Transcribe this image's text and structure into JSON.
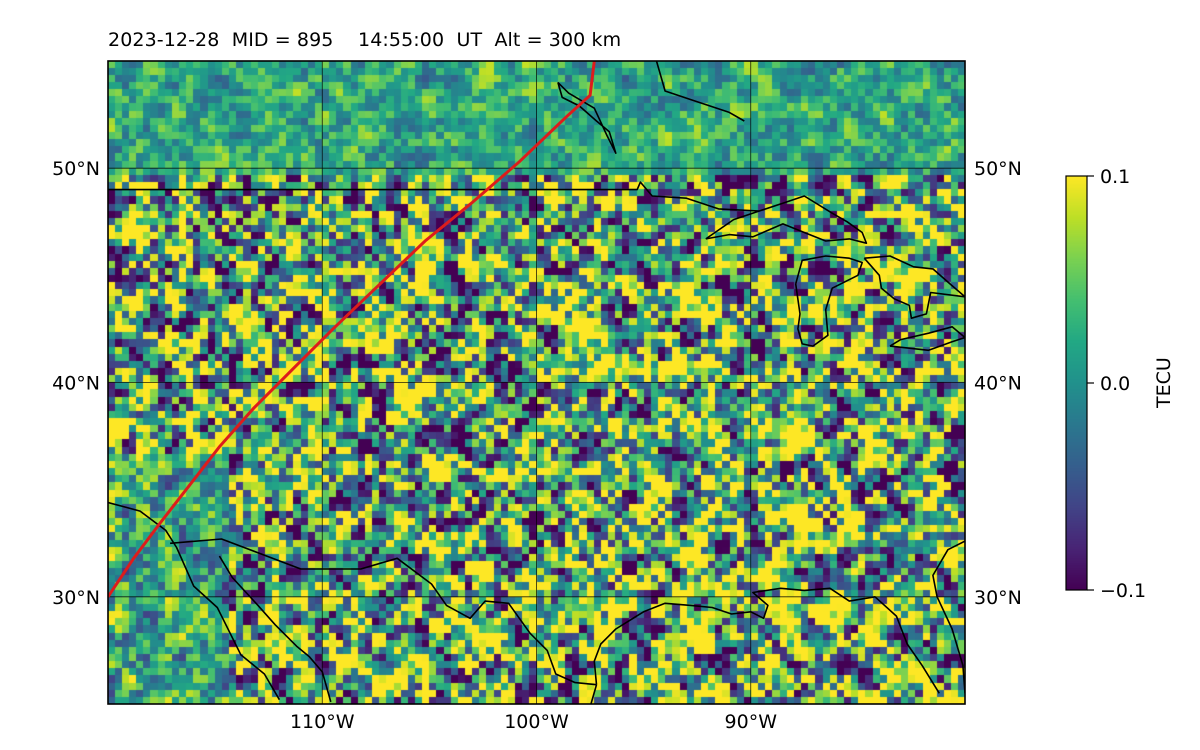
{
  "title": "2023-12-28  MID = 895    14:55:00  UT  Alt = 300 km",
  "map": {
    "lon_range": [
      -120,
      -80
    ],
    "lat_range": [
      25,
      55
    ],
    "lon_ticks": [
      {
        "value": -110,
        "label": "110°W"
      },
      {
        "value": -100,
        "label": "100°W"
      },
      {
        "value": -90,
        "label": "90°W"
      }
    ],
    "lat_ticks": [
      {
        "value": 30,
        "label": "30°N"
      },
      {
        "value": 40,
        "label": "40°N"
      },
      {
        "value": 50,
        "label": "50°N"
      }
    ],
    "grid": true,
    "track_color": "#dd1c1c",
    "coastline_color": "#000000"
  },
  "colorbar": {
    "colormap": "viridis",
    "vmin": -0.1,
    "vmax": 0.1,
    "ticks": [
      {
        "value": 0.1,
        "label": "0.1"
      },
      {
        "value": 0.0,
        "label": "0.0"
      },
      {
        "value": -0.1,
        "label": "−0.1"
      }
    ],
    "label": "TECU"
  }
}
